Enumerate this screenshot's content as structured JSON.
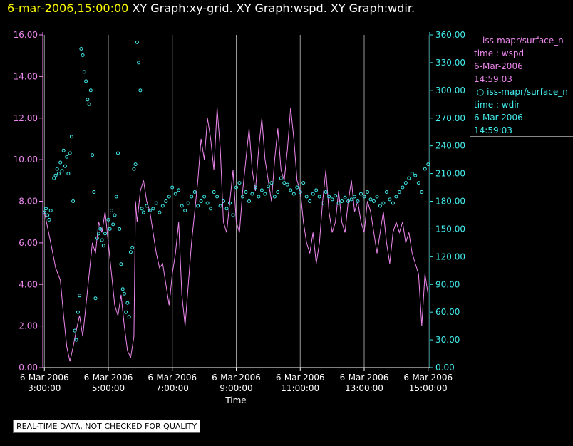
{
  "header": {
    "date_time": "6-mar-2006,15:00:00",
    "graphs": "XY Graph:xy-grid.  XY Graph:wspd.  XY Graph:wdir."
  },
  "legend": {
    "entries": [
      {
        "symbol": "line",
        "name": "iss-mapr/surface_n",
        "var": "time : wspd",
        "date": "6-Mar-2006",
        "time": "14:59:03",
        "color": "#ee88ee"
      },
      {
        "symbol": "circle",
        "name": "iss-mapr/surface_n",
        "var": "time : wdir",
        "date": "6-Mar-2006",
        "time": "14:59:03",
        "color": "#44eeee"
      }
    ]
  },
  "footer_note": "REAL-TIME DATA, NOT CHECKED FOR QUALITY",
  "chart_data": {
    "type": "line",
    "xlabel": "Time",
    "x_ticks": [
      {
        "date": "6-Mar-2006",
        "time": "3:00:00",
        "hour": 3
      },
      {
        "date": "6-Mar-2006",
        "time": "5:00:00",
        "hour": 5
      },
      {
        "date": "6-Mar-2006",
        "time": "7:00:00",
        "hour": 7
      },
      {
        "date": "6-Mar-2006",
        "time": "9:00:00",
        "hour": 9
      },
      {
        "date": "6-Mar-2006",
        "time": "11:00:00",
        "hour": 11
      },
      {
        "date": "6-Mar-2006",
        "time": "13:00:00",
        "hour": 13
      },
      {
        "date": "6-Mar-2006",
        "time": "15:00:00",
        "hour": 15
      }
    ],
    "xlim": [
      2.95,
      15.05
    ],
    "grid": true,
    "y_left": {
      "ylim": [
        0,
        16
      ],
      "ticks": [
        "0.00",
        "2.00",
        "4.00",
        "6.00",
        "8.00",
        "10.00",
        "12.00",
        "14.00",
        "16.00"
      ],
      "color": "#ee88ee"
    },
    "y_right": {
      "ylim": [
        0,
        360
      ],
      "ticks": [
        "0.00",
        "30.00",
        "60.00",
        "90.00",
        "120.00",
        "150.00",
        "180.00",
        "210.00",
        "240.00",
        "270.00",
        "300.00",
        "330.00",
        "360.00"
      ],
      "color": "#44eeee"
    },
    "series": [
      {
        "name": "iss-mapr/surface_n time : wspd",
        "axis": "left",
        "style": "line",
        "color": "#ee88ee",
        "points": [
          [
            3.0,
            7.5
          ],
          [
            3.2,
            6.0
          ],
          [
            3.35,
            4.8
          ],
          [
            3.5,
            4.2
          ],
          [
            3.6,
            2.5
          ],
          [
            3.7,
            1.0
          ],
          [
            3.8,
            0.3
          ],
          [
            3.9,
            1.0
          ],
          [
            4.0,
            1.8
          ],
          [
            4.1,
            2.5
          ],
          [
            4.2,
            1.5
          ],
          [
            4.3,
            3.0
          ],
          [
            4.4,
            4.5
          ],
          [
            4.5,
            6.0
          ],
          [
            4.6,
            5.5
          ],
          [
            4.7,
            7.0
          ],
          [
            4.8,
            6.5
          ],
          [
            4.9,
            7.5
          ],
          [
            5.0,
            6.0
          ],
          [
            5.1,
            4.5
          ],
          [
            5.2,
            3.0
          ],
          [
            5.3,
            2.5
          ],
          [
            5.4,
            3.5
          ],
          [
            5.5,
            2.0
          ],
          [
            5.6,
            0.8
          ],
          [
            5.7,
            0.5
          ],
          [
            5.8,
            1.5
          ],
          [
            5.85,
            8.0
          ],
          [
            5.9,
            7.0
          ],
          [
            6.0,
            8.5
          ],
          [
            6.1,
            9.0
          ],
          [
            6.2,
            8.0
          ],
          [
            6.3,
            7.5
          ],
          [
            6.4,
            6.5
          ],
          [
            6.5,
            5.5
          ],
          [
            6.6,
            4.8
          ],
          [
            6.7,
            5.0
          ],
          [
            6.8,
            4.0
          ],
          [
            6.9,
            3.0
          ],
          [
            7.0,
            4.5
          ],
          [
            7.1,
            5.5
          ],
          [
            7.2,
            7.0
          ],
          [
            7.3,
            3.5
          ],
          [
            7.4,
            2.0
          ],
          [
            7.5,
            4.0
          ],
          [
            7.6,
            6.0
          ],
          [
            7.7,
            7.5
          ],
          [
            7.8,
            9.0
          ],
          [
            7.9,
            11.0
          ],
          [
            8.0,
            10.0
          ],
          [
            8.1,
            12.0
          ],
          [
            8.2,
            11.0
          ],
          [
            8.3,
            9.5
          ],
          [
            8.4,
            12.5
          ],
          [
            8.5,
            10.5
          ],
          [
            8.6,
            7.0
          ],
          [
            8.7,
            6.5
          ],
          [
            8.8,
            8.0
          ],
          [
            8.9,
            9.5
          ],
          [
            9.0,
            7.0
          ],
          [
            9.1,
            6.5
          ],
          [
            9.2,
            8.5
          ],
          [
            9.3,
            10.0
          ],
          [
            9.4,
            11.5
          ],
          [
            9.5,
            9.5
          ],
          [
            9.6,
            8.5
          ],
          [
            9.7,
            10.5
          ],
          [
            9.8,
            12.0
          ],
          [
            9.9,
            10.0
          ],
          [
            10.0,
            9.0
          ],
          [
            10.1,
            8.0
          ],
          [
            10.2,
            10.0
          ],
          [
            10.3,
            11.5
          ],
          [
            10.4,
            9.5
          ],
          [
            10.5,
            9.0
          ],
          [
            10.6,
            10.5
          ],
          [
            10.7,
            12.5
          ],
          [
            10.8,
            11.0
          ],
          [
            10.9,
            9.0
          ],
          [
            11.0,
            8.5
          ],
          [
            11.1,
            7.0
          ],
          [
            11.2,
            6.0
          ],
          [
            11.3,
            5.5
          ],
          [
            11.4,
            6.5
          ],
          [
            11.5,
            5.0
          ],
          [
            11.6,
            6.0
          ],
          [
            11.7,
            8.0
          ],
          [
            11.8,
            9.5
          ],
          [
            11.9,
            7.5
          ],
          [
            12.0,
            6.5
          ],
          [
            12.1,
            7.0
          ],
          [
            12.2,
            8.5
          ],
          [
            12.3,
            7.0
          ],
          [
            12.4,
            6.5
          ],
          [
            12.5,
            8.0
          ],
          [
            12.6,
            9.0
          ],
          [
            12.7,
            7.5
          ],
          [
            12.8,
            8.0
          ],
          [
            12.9,
            7.0
          ],
          [
            13.0,
            6.5
          ],
          [
            13.1,
            8.0
          ],
          [
            13.2,
            7.5
          ],
          [
            13.3,
            6.5
          ],
          [
            13.4,
            5.5
          ],
          [
            13.5,
            6.5
          ],
          [
            13.6,
            7.5
          ],
          [
            13.7,
            6.0
          ],
          [
            13.8,
            5.0
          ],
          [
            13.9,
            6.5
          ],
          [
            14.0,
            7.0
          ],
          [
            14.1,
            6.5
          ],
          [
            14.2,
            7.0
          ],
          [
            14.3,
            6.0
          ],
          [
            14.4,
            6.5
          ],
          [
            14.5,
            5.5
          ],
          [
            14.6,
            5.0
          ],
          [
            14.7,
            4.5
          ],
          [
            14.8,
            2.0
          ],
          [
            14.9,
            4.5
          ],
          [
            15.0,
            3.5
          ]
        ]
      },
      {
        "name": "iss-mapr/surface_n time : wdir",
        "axis": "right",
        "style": "circle",
        "color": "#44eeee",
        "points": [
          [
            3.0,
            168
          ],
          [
            3.05,
            172
          ],
          [
            3.1,
            165
          ],
          [
            3.15,
            160
          ],
          [
            3.2,
            170
          ],
          [
            3.3,
            205
          ],
          [
            3.35,
            208
          ],
          [
            3.4,
            215
          ],
          [
            3.45,
            210
          ],
          [
            3.5,
            222
          ],
          [
            3.55,
            213
          ],
          [
            3.6,
            235
          ],
          [
            3.65,
            218
          ],
          [
            3.7,
            228
          ],
          [
            3.75,
            210
          ],
          [
            3.8,
            232
          ],
          [
            3.85,
            250
          ],
          [
            3.9,
            180
          ],
          [
            3.95,
            40
          ],
          [
            4.0,
            30
          ],
          [
            4.05,
            60
          ],
          [
            4.1,
            78
          ],
          [
            4.15,
            345
          ],
          [
            4.2,
            338
          ],
          [
            4.25,
            320
          ],
          [
            4.3,
            310
          ],
          [
            4.35,
            290
          ],
          [
            4.4,
            285
          ],
          [
            4.45,
            300
          ],
          [
            4.5,
            230
          ],
          [
            4.55,
            190
          ],
          [
            4.6,
            75
          ],
          [
            4.65,
            140
          ],
          [
            4.7,
            145
          ],
          [
            4.75,
            150
          ],
          [
            4.8,
            138
          ],
          [
            4.85,
            132
          ],
          [
            4.9,
            145
          ],
          [
            5.0,
            160
          ],
          [
            5.05,
            150
          ],
          [
            5.1,
            170
          ],
          [
            5.15,
            155
          ],
          [
            5.2,
            165
          ],
          [
            5.25,
            185
          ],
          [
            5.3,
            232
          ],
          [
            5.35,
            150
          ],
          [
            5.4,
            112
          ],
          [
            5.45,
            85
          ],
          [
            5.5,
            80
          ],
          [
            5.55,
            60
          ],
          [
            5.6,
            70
          ],
          [
            5.65,
            55
          ],
          [
            5.7,
            125
          ],
          [
            5.75,
            130
          ],
          [
            5.8,
            215
          ],
          [
            5.85,
            220
          ],
          [
            5.9,
            352
          ],
          [
            5.95,
            330
          ],
          [
            6.0,
            300
          ],
          [
            6.05,
            172
          ],
          [
            6.1,
            168
          ],
          [
            6.2,
            175
          ],
          [
            6.3,
            170
          ],
          [
            6.4,
            172
          ],
          [
            6.5,
            178
          ],
          [
            6.6,
            168
          ],
          [
            6.7,
            175
          ],
          [
            6.8,
            180
          ],
          [
            6.9,
            185
          ],
          [
            7.0,
            195
          ],
          [
            7.1,
            188
          ],
          [
            7.2,
            192
          ],
          [
            7.3,
            175
          ],
          [
            7.4,
            170
          ],
          [
            7.5,
            178
          ],
          [
            7.6,
            185
          ],
          [
            7.7,
            190
          ],
          [
            7.8,
            175
          ],
          [
            7.9,
            180
          ],
          [
            8.0,
            185
          ],
          [
            8.1,
            178
          ],
          [
            8.2,
            172
          ],
          [
            8.3,
            190
          ],
          [
            8.4,
            185
          ],
          [
            8.5,
            175
          ],
          [
            8.6,
            180
          ],
          [
            8.7,
            172
          ],
          [
            8.8,
            178
          ],
          [
            8.9,
            165
          ],
          [
            9.0,
            195
          ],
          [
            9.1,
            200
          ],
          [
            9.2,
            185
          ],
          [
            9.3,
            190
          ],
          [
            9.4,
            180
          ],
          [
            9.5,
            188
          ],
          [
            9.6,
            195
          ],
          [
            9.7,
            185
          ],
          [
            9.8,
            192
          ],
          [
            9.9,
            188
          ],
          [
            10.0,
            196
          ],
          [
            10.1,
            200
          ],
          [
            10.2,
            185
          ],
          [
            10.3,
            190
          ],
          [
            10.4,
            205
          ],
          [
            10.5,
            200
          ],
          [
            10.6,
            198
          ],
          [
            10.7,
            192
          ],
          [
            10.8,
            188
          ],
          [
            10.9,
            195
          ],
          [
            11.0,
            190
          ],
          [
            11.1,
            200
          ],
          [
            11.2,
            185
          ],
          [
            11.3,
            180
          ],
          [
            11.4,
            188
          ],
          [
            11.5,
            192
          ],
          [
            11.6,
            185
          ],
          [
            11.7,
            178
          ],
          [
            11.8,
            190
          ],
          [
            11.9,
            185
          ],
          [
            12.0,
            182
          ],
          [
            12.1,
            186
          ],
          [
            12.2,
            178
          ],
          [
            12.3,
            180
          ],
          [
            12.4,
            184
          ],
          [
            12.5,
            180
          ],
          [
            12.6,
            182
          ],
          [
            12.7,
            185
          ],
          [
            12.8,
            180
          ],
          [
            12.9,
            188
          ],
          [
            13.0,
            185
          ],
          [
            13.1,
            190
          ],
          [
            13.2,
            182
          ],
          [
            13.3,
            180
          ],
          [
            13.4,
            185
          ],
          [
            13.5,
            175
          ],
          [
            13.6,
            178
          ],
          [
            13.7,
            190
          ],
          [
            13.8,
            182
          ],
          [
            13.9,
            178
          ],
          [
            14.0,
            185
          ],
          [
            14.1,
            190
          ],
          [
            14.2,
            195
          ],
          [
            14.3,
            200
          ],
          [
            14.4,
            205
          ],
          [
            14.5,
            210
          ],
          [
            14.6,
            208
          ],
          [
            14.7,
            200
          ],
          [
            14.8,
            190
          ],
          [
            14.9,
            215
          ],
          [
            15.0,
            220
          ]
        ]
      }
    ]
  }
}
